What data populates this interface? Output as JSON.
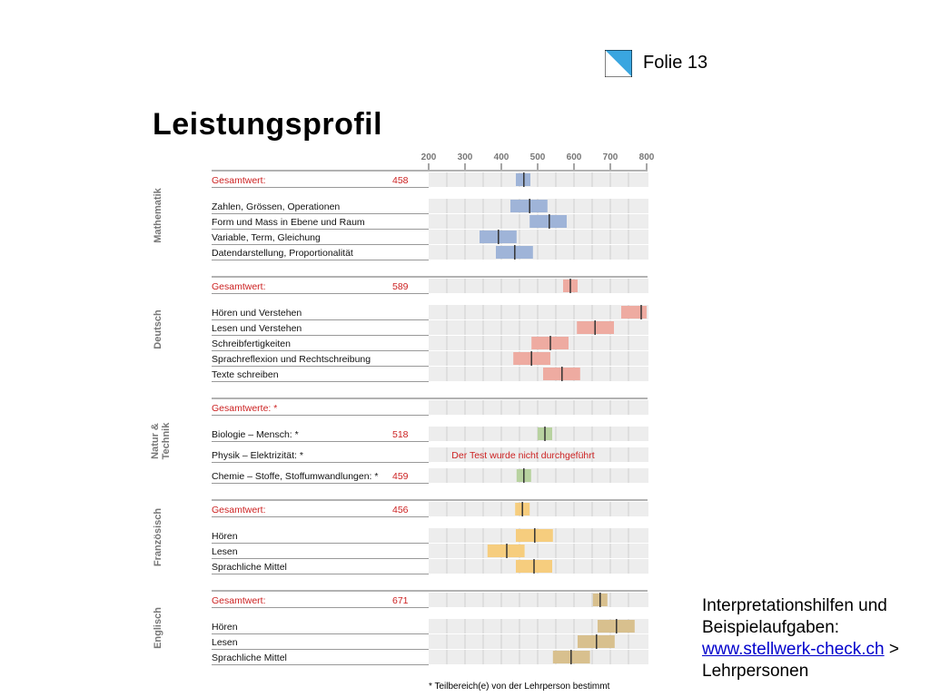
{
  "header": {
    "slide_label": "Folie 13",
    "logo_icon": "zurich-canton-logo-icon"
  },
  "title": "Leistungsprofil",
  "side_text": {
    "line1": "Interpretationshilfen und",
    "line2": "Beispielaufgaben:",
    "link": "www.stellwerk-check.ch",
    "suffix": " >",
    "line4": "Lehrpersonen"
  },
  "footnote": "* Teilbereich(e) von der Lehrperson bestimmt",
  "colors": {
    "mathematik": "#9fb4d8",
    "deutsch": "#eeaba1",
    "natur": "#b8d2a0",
    "franzoesisch": "#f6cd7e",
    "englisch": "#d8c08e",
    "accent": "#cc2222"
  },
  "chart_data": {
    "type": "range-bar",
    "x_ticks": [
      "200",
      "300",
      "400",
      "500",
      "600",
      "700",
      "800"
    ],
    "xlim": [
      200,
      800
    ],
    "sections": [
      {
        "name": "Mathematik",
        "color_key": "mathematik",
        "rows": [
          {
            "label": "Gesamtwert:",
            "value": "458",
            "total": true,
            "low": 440,
            "high": 480,
            "mid": 462
          },
          {
            "label": "Zahlen, Grössen, Operationen",
            "low": 425,
            "high": 527,
            "mid": 478
          },
          {
            "label": "Form und Mass in Ebene und Raum",
            "low": 478,
            "high": 580,
            "mid": 532
          },
          {
            "label": "Variable, Term, Gleichung",
            "low": 340,
            "high": 442,
            "mid": 392
          },
          {
            "label": "Datendarstellung, Proportionalität",
            "low": 385,
            "high": 487,
            "mid": 437
          }
        ]
      },
      {
        "name": "Deutsch",
        "color_key": "deutsch",
        "rows": [
          {
            "label": "Gesamtwert:",
            "value": "589",
            "total": true,
            "low": 570,
            "high": 610,
            "mid": 590
          },
          {
            "label": "Hören und Verstehen",
            "low": 730,
            "high": 800,
            "mid": 785
          },
          {
            "label": "Lesen und Verstehen",
            "low": 608,
            "high": 710,
            "mid": 658
          },
          {
            "label": "Schreibfertigkeiten",
            "low": 483,
            "high": 585,
            "mid": 535
          },
          {
            "label": "Sprachreflexion und Rechtschreibung",
            "low": 433,
            "high": 535,
            "mid": 483
          },
          {
            "label": "Texte schreiben",
            "low": 515,
            "high": 617,
            "mid": 567
          }
        ]
      },
      {
        "name": "Natur & Technik",
        "color_key": "natur",
        "rows": [
          {
            "label": "Gesamtwerte: *",
            "total": true
          },
          {
            "label": "Biologie – Mensch: *",
            "value": "518",
            "low": 500,
            "high": 540,
            "mid": 520
          },
          {
            "label": "Physik – Elektrizität: *",
            "note": "Der Test wurde nicht durchgeführt"
          },
          {
            "label": "Chemie – Stoffe, Stoffumwandlungen: *",
            "value": "459",
            "low": 442,
            "high": 482,
            "mid": 462
          }
        ]
      },
      {
        "name": "Französisch",
        "color_key": "franzoesisch",
        "rows": [
          {
            "label": "Gesamtwert:",
            "value": "456",
            "total": true,
            "low": 438,
            "high": 478,
            "mid": 458
          },
          {
            "label": "Hören",
            "low": 440,
            "high": 542,
            "mid": 492
          },
          {
            "label": "Lesen",
            "low": 362,
            "high": 464,
            "mid": 415
          },
          {
            "label": "Sprachliche Mittel",
            "low": 440,
            "high": 540,
            "mid": 490
          }
        ]
      },
      {
        "name": "Englisch",
        "color_key": "englisch",
        "rows": [
          {
            "label": "Gesamtwert:",
            "value": "671",
            "total": true,
            "low": 652,
            "high": 692,
            "mid": 672
          },
          {
            "label": "Hören",
            "low": 665,
            "high": 767,
            "mid": 717
          },
          {
            "label": "Lesen",
            "low": 610,
            "high": 712,
            "mid": 662
          },
          {
            "label": "Sprachliche Mittel",
            "low": 542,
            "high": 644,
            "mid": 592
          }
        ]
      }
    ]
  }
}
